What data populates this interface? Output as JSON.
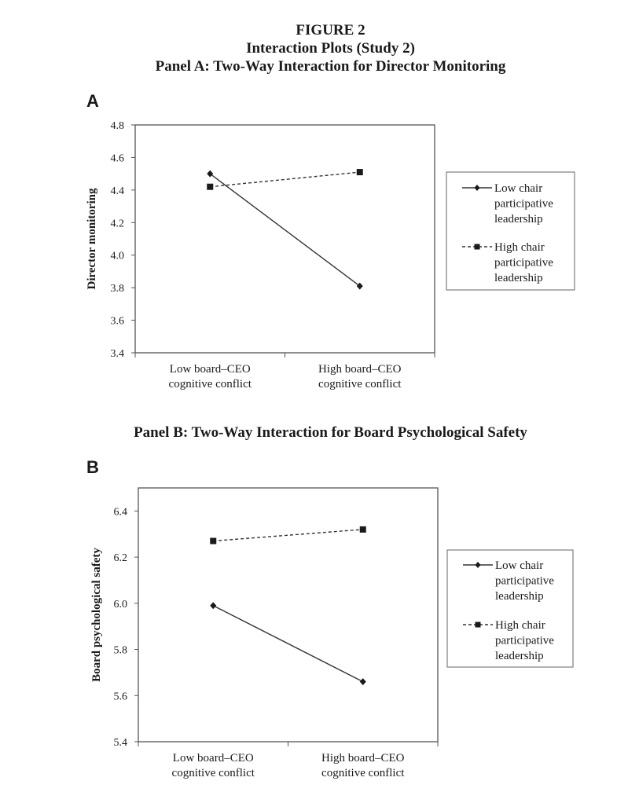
{
  "figure": {
    "number": "FIGURE 2",
    "title": "Interaction Plots (Study 2)",
    "panel_a_title": "Panel A: Two-Way Interaction for Director Monitoring",
    "panel_b_title": "Panel B: Two-Way Interaction for Board Psychological Safety",
    "panel_a_letter": "A",
    "panel_b_letter": "B"
  },
  "chart_data": [
    {
      "type": "line",
      "title": "Panel A: Two-Way Interaction for Director Monitoring",
      "ylabel": "Director monitoring",
      "xlabel": "",
      "categories": [
        [
          "Low board–CEO",
          "cognitive conflict"
        ],
        [
          "High board–CEO",
          "cognitive conflict"
        ]
      ],
      "ylim": [
        3.4,
        4.8
      ],
      "yticks": [
        "3.4",
        "3.6",
        "3.8",
        "4.0",
        "4.2",
        "4.4",
        "4.6",
        "4.8"
      ],
      "grid": false,
      "legend": "right",
      "series": [
        {
          "name": [
            "Low chair",
            "participative",
            "leadership"
          ],
          "values": [
            4.5,
            3.81
          ],
          "marker": "diamond",
          "dash": "solid",
          "color": "#333333"
        },
        {
          "name": [
            "High chair",
            "participative",
            "leadership"
          ],
          "values": [
            4.42,
            4.51
          ],
          "marker": "square",
          "dash": "dashed",
          "color": "#333333"
        }
      ]
    },
    {
      "type": "line",
      "title": "Panel B: Two-Way Interaction for Board Psychological Safety",
      "ylabel": "Board psychological safety",
      "xlabel": "",
      "categories": [
        [
          "Low board–CEO",
          "cognitive conflict"
        ],
        [
          "High board–CEO",
          "cognitive conflict"
        ]
      ],
      "ylim": [
        5.4,
        6.5
      ],
      "yticks": [
        "5.4",
        "5.6",
        "5.8",
        "6.0",
        "6.2",
        "6.4"
      ],
      "grid": false,
      "legend": "right",
      "series": [
        {
          "name": [
            "Low chair",
            "participative",
            "leadership"
          ],
          "values": [
            5.99,
            5.66
          ],
          "marker": "diamond",
          "dash": "solid",
          "color": "#333333"
        },
        {
          "name": [
            "High chair",
            "participative",
            "leadership"
          ],
          "values": [
            6.27,
            6.32
          ],
          "marker": "square",
          "dash": "dashed",
          "color": "#333333"
        }
      ]
    }
  ]
}
